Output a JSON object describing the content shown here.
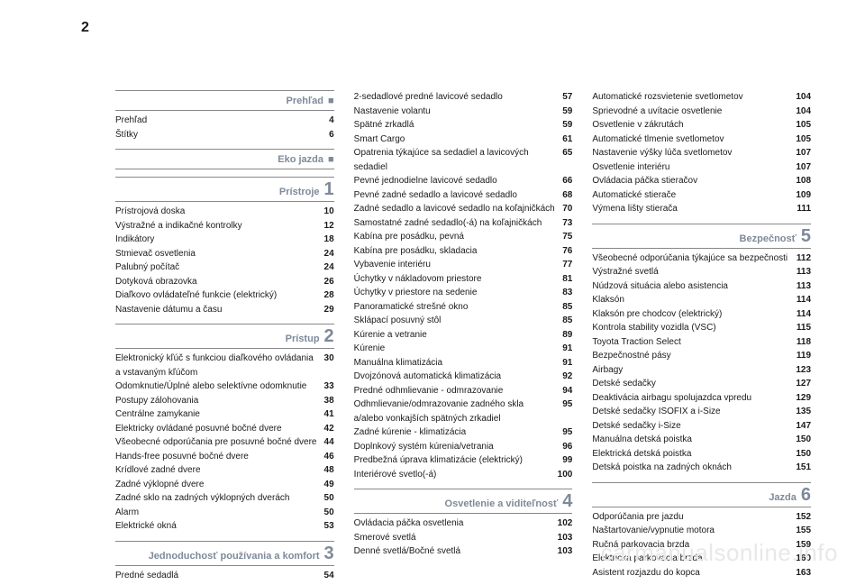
{
  "pageNumber": "2",
  "watermark": "carmanualsonline.info",
  "columns": [
    {
      "sections": [
        {
          "title": "Prehľad",
          "marker": "■",
          "items": [
            {
              "label": "Prehľad",
              "page": "4"
            },
            {
              "label": "Štítky",
              "page": "6"
            }
          ]
        },
        {
          "title": "Eko jazda",
          "marker": "■",
          "items": []
        },
        {
          "title": "Prístroje",
          "num": "1",
          "items": [
            {
              "label": "Prístrojová doska",
              "page": "10"
            },
            {
              "label": "Výstražné a indikačné kontrolky",
              "page": "12"
            },
            {
              "label": "Indikátory",
              "page": "18"
            },
            {
              "label": "Stmievač osvetlenia",
              "page": "24"
            },
            {
              "label": "Palubný počítač",
              "page": "24"
            },
            {
              "label": "Dotyková obrazovka",
              "page": "26"
            },
            {
              "label": "Diaľkovo ovládateľné funkcie (elektrický)",
              "page": "28"
            },
            {
              "label": "Nastavenie dátumu a času",
              "page": "29"
            }
          ]
        },
        {
          "title": "Prístup",
          "num": "2",
          "items": [
            {
              "label": "Elektronický kľúč s funkciou diaľkového ovládania a vstavaným kľúčom",
              "page": "30"
            },
            {
              "label": "Odomknutie/Úplné alebo selektívne odomknutie",
              "page": "33"
            },
            {
              "label": "Postupy zálohovania",
              "page": "38"
            },
            {
              "label": "Centrálne zamykanie",
              "page": "41"
            },
            {
              "label": "Elektricky ovládané posuvné bočné dvere",
              "page": "42"
            },
            {
              "label": "Všeobecné odporúčania pre posuvné bočné dvere",
              "page": "44"
            },
            {
              "label": "Hands-free posuvné bočné dvere",
              "page": "46"
            },
            {
              "label": "Krídlové zadné dvere",
              "page": "48"
            },
            {
              "label": "Zadné výklopné dvere",
              "page": "49"
            },
            {
              "label": "Zadné sklo na zadných výklopných dverách",
              "page": "50"
            },
            {
              "label": "Alarm",
              "page": "50"
            },
            {
              "label": "Elektrické okná",
              "page": "53"
            }
          ]
        },
        {
          "title": "Jednoduchosť používania a komfort",
          "num": "3",
          "items": [
            {
              "label": "Predné sedadlá",
              "page": "54"
            }
          ]
        }
      ]
    },
    {
      "sections": [
        {
          "items": [
            {
              "label": "2-sedadlové predné lavicové sedadlo",
              "page": "57"
            },
            {
              "label": "Nastavenie volantu",
              "page": "59"
            },
            {
              "label": "Spätné zrkadlá",
              "page": "59"
            },
            {
              "label": "Smart Cargo",
              "page": "61"
            },
            {
              "label": "Opatrenia týkajúce sa sedadiel a lavicových sedadiel",
              "page": "65"
            },
            {
              "label": "Pevné jednodielne lavicové sedadlo",
              "page": "66"
            },
            {
              "label": "Pevné zadné sedadlo a lavicové sedadlo",
              "page": "68"
            },
            {
              "label": "Zadné sedadlo a lavicové sedadlo na koľajničkách",
              "page": "70"
            },
            {
              "label": "Samostatné zadné sedadlo(-á) na koľajničkách",
              "page": "73"
            },
            {
              "label": "Kabína pre posádku, pevná",
              "page": "75"
            },
            {
              "label": "Kabína pre posádku, skladacia",
              "page": "76"
            },
            {
              "label": "Vybavenie interiéru",
              "page": "77"
            },
            {
              "label": "Úchytky v nákladovom priestore",
              "page": "81"
            },
            {
              "label": "Úchytky v priestore na sedenie",
              "page": "83"
            },
            {
              "label": "Panoramatické strešné okno",
              "page": "85"
            },
            {
              "label": "Sklápací posuvný stôl",
              "page": "85"
            },
            {
              "label": "Kúrenie a vetranie",
              "page": "89"
            },
            {
              "label": "Kúrenie",
              "page": "91"
            },
            {
              "label": "Manuálna klimatizácia",
              "page": "91"
            },
            {
              "label": "Dvojzónová automatická klimatizácia",
              "page": "92"
            },
            {
              "label": "Predné odhmlievanie - odmrazovanie",
              "page": "94"
            },
            {
              "label": "Odhmlievanie/odmrazovanie zadného skla a/alebo vonkajších spätných zrkadiel",
              "page": "95"
            },
            {
              "label": "Zadné kúrenie - klimatizácia",
              "page": "95"
            },
            {
              "label": "Doplnkový systém kúrenia/vetrania",
              "page": "96"
            },
            {
              "label": "Predbežná úprava klimatizácie (elektrický)",
              "page": "99"
            },
            {
              "label": "Interiérové svetlo(-á)",
              "page": "100"
            }
          ]
        },
        {
          "title": "Osvetlenie a viditeľnosť",
          "num": "4",
          "items": [
            {
              "label": "Ovládacia páčka osvetlenia",
              "page": "102"
            },
            {
              "label": "Smerové svetlá",
              "page": "103"
            },
            {
              "label": "Denné svetlá/Bočné svetlá",
              "page": "103"
            }
          ]
        }
      ]
    },
    {
      "sections": [
        {
          "items": [
            {
              "label": "Automatické rozsvietenie svetlometov",
              "page": "104"
            },
            {
              "label": "Sprievodné a uvítacie osvetlenie",
              "page": "104"
            },
            {
              "label": "Osvetlenie v zákrutách",
              "page": "105"
            },
            {
              "label": "Automatické tlmenie svetlometov",
              "page": "105"
            },
            {
              "label": "Nastavenie výšky lúča svetlometov",
              "page": "107"
            },
            {
              "label": "Osvetlenie interiéru",
              "page": "107"
            },
            {
              "label": "Ovládacia páčka stieračov",
              "page": "108"
            },
            {
              "label": "Automatické stierače",
              "page": "109"
            },
            {
              "label": "Výmena lišty stierača",
              "page": "111"
            }
          ]
        },
        {
          "title": "Bezpečnosť",
          "num": "5",
          "items": [
            {
              "label": "Všeobecné odporúčania týkajúce sa bezpečnosti",
              "page": "112"
            },
            {
              "label": "Výstražné svetlá",
              "page": "113"
            },
            {
              "label": "Núdzová situácia alebo asistencia",
              "page": "113"
            },
            {
              "label": "Klaksón",
              "page": "114"
            },
            {
              "label": "Klaksón pre chodcov (elektrický)",
              "page": "114"
            },
            {
              "label": "Kontrola stability vozidla (VSC)",
              "page": "115"
            },
            {
              "label": "Toyota Traction Select",
              "page": "118"
            },
            {
              "label": "Bezpečnostné pásy",
              "page": "119"
            },
            {
              "label": "Airbagy",
              "page": "123"
            },
            {
              "label": "Detské sedačky",
              "page": "127"
            },
            {
              "label": "Deaktivácia airbagu spolujazdca vpredu",
              "page": "129"
            },
            {
              "label": "Detské sedačky ISOFIX a i-Size",
              "page": "135"
            },
            {
              "label": "Detské sedačky i-Size",
              "page": "147"
            },
            {
              "label": "Manuálna detská poistka",
              "page": "150"
            },
            {
              "label": "Elektrická detská poistka",
              "page": "150"
            },
            {
              "label": "Detská poistka na zadných oknách",
              "page": "151"
            }
          ]
        },
        {
          "title": "Jazda",
          "num": "6",
          "items": [
            {
              "label": "Odporúčania pre jazdu",
              "page": "152"
            },
            {
              "label": "Naštartovanie/vypnutie motora",
              "page": "155"
            },
            {
              "label": "Ručná parkovacia brzda",
              "page": "159"
            },
            {
              "label": "Elektrická parkovacia brzda",
              "page": "160"
            },
            {
              "label": "Asistent rozjazdu do kopca",
              "page": "163"
            }
          ]
        }
      ]
    }
  ]
}
